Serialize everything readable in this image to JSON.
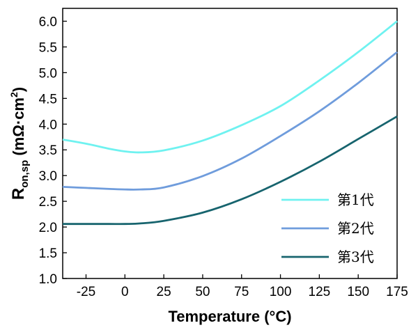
{
  "chart_data": {
    "type": "line",
    "title": "",
    "xlabel": "Temperature (°C)",
    "ylabel_main": "R",
    "ylabel_sub": "on,sp",
    "ylabel_unit_prefix": " (mΩ·cm",
    "ylabel_unit_sup": "2",
    "ylabel_unit_suffix": ")",
    "xlim": [
      -40,
      175
    ],
    "ylim": [
      1.0,
      6.25
    ],
    "xticks": [
      -25,
      0,
      25,
      50,
      75,
      100,
      125,
      150,
      175
    ],
    "yticks": [
      1.0,
      1.5,
      2.0,
      2.5,
      3.0,
      3.5,
      4.0,
      4.5,
      5.0,
      5.5,
      6.0
    ],
    "grid": false,
    "legend_position": "bottom-right",
    "x": [
      -40,
      -25,
      -10,
      0,
      10,
      25,
      50,
      75,
      100,
      125,
      150,
      175
    ],
    "series": [
      {
        "name": "第1代",
        "color": "#6ff2f0",
        "values": [
          3.7,
          3.62,
          3.52,
          3.47,
          3.45,
          3.49,
          3.68,
          3.98,
          4.35,
          4.85,
          5.4,
          6.0
        ]
      },
      {
        "name": "第2代",
        "color": "#6f9cdc",
        "values": [
          2.78,
          2.76,
          2.74,
          2.73,
          2.73,
          2.77,
          2.99,
          3.33,
          3.77,
          4.25,
          4.8,
          5.4
        ]
      },
      {
        "name": "第3代",
        "color": "#17646e",
        "values": [
          2.06,
          2.06,
          2.06,
          2.06,
          2.07,
          2.12,
          2.28,
          2.54,
          2.88,
          3.27,
          3.71,
          4.15
        ]
      }
    ]
  }
}
